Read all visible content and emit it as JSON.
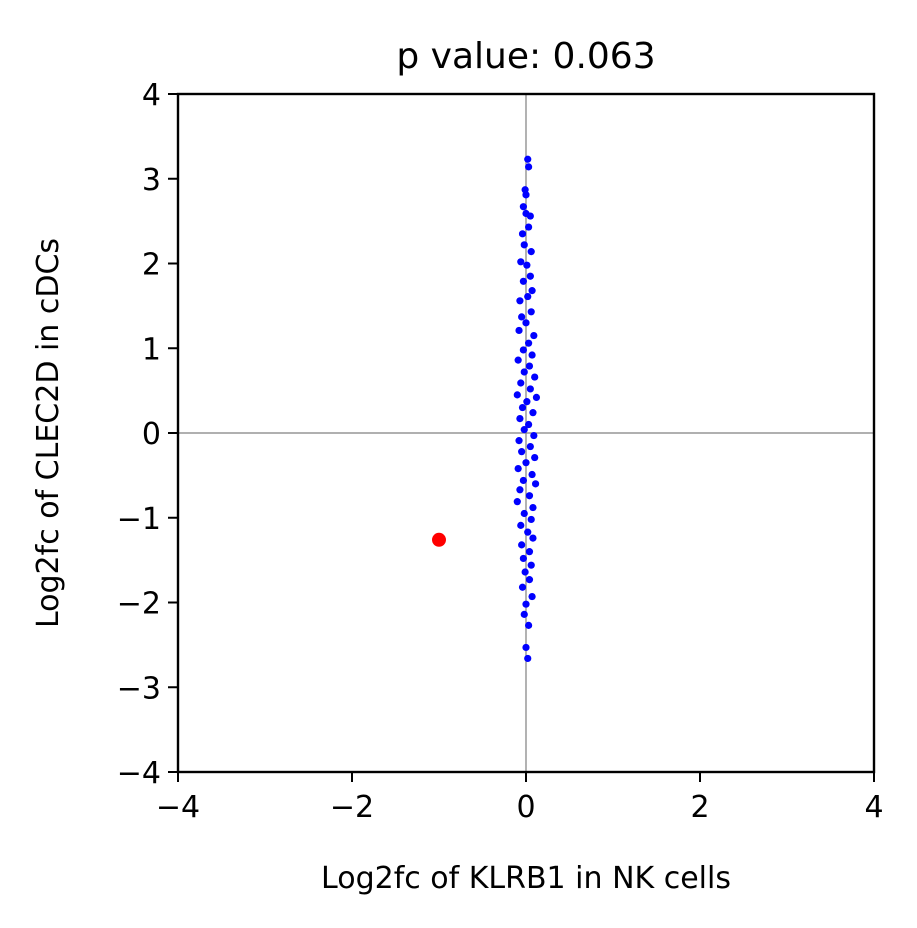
{
  "chart_data": {
    "type": "scatter",
    "title": "p value: 0.063",
    "xlabel": "Log2fc of KLRB1 in NK cells",
    "ylabel": "Log2fc of CLEC2D in cDCs",
    "xlim": [
      -4,
      4
    ],
    "ylim": [
      -4,
      4
    ],
    "xticks": [
      -4,
      -2,
      0,
      2,
      4
    ],
    "yticks": [
      -4,
      -3,
      -2,
      -1,
      0,
      1,
      2,
      3,
      4
    ],
    "xtick_labels": [
      "−4",
      "−2",
      "0",
      "2",
      "4"
    ],
    "ytick_labels": [
      "−4",
      "−3",
      "−2",
      "−1",
      "0",
      "1",
      "2",
      "3",
      "4"
    ],
    "reference_lines": {
      "x": 0,
      "y": 0
    },
    "grid": false,
    "series": [
      {
        "color": "#0000ff",
        "points": [
          {
            "x": 0.02,
            "y": 3.23
          },
          {
            "x": 0.03,
            "y": 3.14
          },
          {
            "x": -0.01,
            "y": 2.87
          },
          {
            "x": 0.0,
            "y": 2.81
          },
          {
            "x": -0.03,
            "y": 2.67
          },
          {
            "x": 0.05,
            "y": 2.56
          },
          {
            "x": 0.0,
            "y": 2.59
          },
          {
            "x": -0.04,
            "y": 2.35
          },
          {
            "x": 0.03,
            "y": 2.43
          },
          {
            "x": -0.02,
            "y": 2.22
          },
          {
            "x": 0.06,
            "y": 2.14
          },
          {
            "x": -0.06,
            "y": 2.02
          },
          {
            "x": 0.01,
            "y": 1.98
          },
          {
            "x": 0.05,
            "y": 1.85
          },
          {
            "x": -0.03,
            "y": 1.79
          },
          {
            "x": 0.07,
            "y": 1.68
          },
          {
            "x": -0.07,
            "y": 1.56
          },
          {
            "x": 0.02,
            "y": 1.61
          },
          {
            "x": 0.06,
            "y": 1.43
          },
          {
            "x": -0.05,
            "y": 1.37
          },
          {
            "x": 0.0,
            "y": 1.3
          },
          {
            "x": -0.08,
            "y": 1.21
          },
          {
            "x": 0.09,
            "y": 1.15
          },
          {
            "x": 0.03,
            "y": 1.06
          },
          {
            "x": -0.03,
            "y": 0.98
          },
          {
            "x": 0.07,
            "y": 0.92
          },
          {
            "x": -0.09,
            "y": 0.86
          },
          {
            "x": 0.04,
            "y": 0.79
          },
          {
            "x": -0.02,
            "y": 0.72
          },
          {
            "x": 0.1,
            "y": 0.66
          },
          {
            "x": -0.06,
            "y": 0.59
          },
          {
            "x": 0.05,
            "y": 0.52
          },
          {
            "x": -0.1,
            "y": 0.45
          },
          {
            "x": 0.12,
            "y": 0.42
          },
          {
            "x": 0.01,
            "y": 0.37
          },
          {
            "x": -0.04,
            "y": 0.3
          },
          {
            "x": 0.08,
            "y": 0.24
          },
          {
            "x": -0.07,
            "y": 0.17
          },
          {
            "x": 0.03,
            "y": 0.1
          },
          {
            "x": -0.02,
            "y": 0.04
          },
          {
            "x": 0.09,
            "y": -0.03
          },
          {
            "x": -0.08,
            "y": -0.09
          },
          {
            "x": 0.05,
            "y": -0.16
          },
          {
            "x": -0.05,
            "y": -0.22
          },
          {
            "x": 0.1,
            "y": -0.29
          },
          {
            "x": 0.0,
            "y": -0.35
          },
          {
            "x": -0.09,
            "y": -0.42
          },
          {
            "x": 0.07,
            "y": -0.49
          },
          {
            "x": -0.03,
            "y": -0.56
          },
          {
            "x": 0.11,
            "y": -0.6
          },
          {
            "x": -0.07,
            "y": -0.67
          },
          {
            "x": 0.04,
            "y": -0.74
          },
          {
            "x": -0.1,
            "y": -0.81
          },
          {
            "x": 0.08,
            "y": -0.88
          },
          {
            "x": -0.02,
            "y": -0.95
          },
          {
            "x": 0.06,
            "y": -1.02
          },
          {
            "x": -0.06,
            "y": -1.09
          },
          {
            "x": 0.02,
            "y": -1.17
          },
          {
            "x": 0.08,
            "y": -1.24
          },
          {
            "x": -0.05,
            "y": -1.32
          },
          {
            "x": 0.04,
            "y": -1.4
          },
          {
            "x": -0.03,
            "y": -1.48
          },
          {
            "x": 0.06,
            "y": -1.56
          },
          {
            "x": -0.01,
            "y": -1.64
          },
          {
            "x": 0.04,
            "y": -1.73
          },
          {
            "x": -0.04,
            "y": -1.82
          },
          {
            "x": 0.07,
            "y": -1.93
          },
          {
            "x": 0.0,
            "y": -2.02
          },
          {
            "x": -0.02,
            "y": -2.14
          },
          {
            "x": 0.03,
            "y": -2.27
          },
          {
            "x": 0.0,
            "y": -2.53
          },
          {
            "x": 0.02,
            "y": -2.66
          }
        ]
      },
      {
        "color": "#ff0000",
        "points": [
          {
            "x": -1.0,
            "y": -1.26
          }
        ]
      }
    ]
  }
}
